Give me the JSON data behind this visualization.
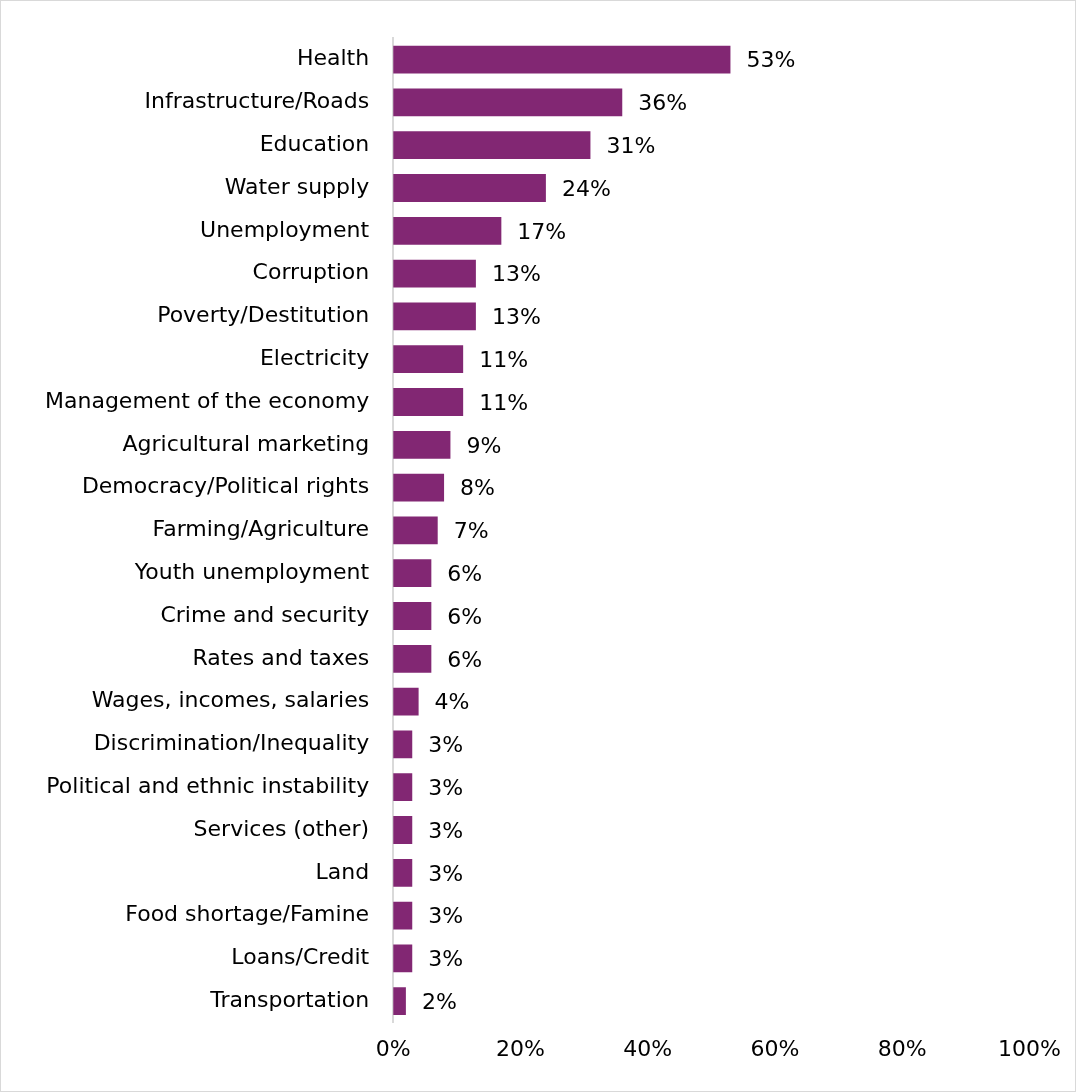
{
  "chart_data": {
    "type": "bar",
    "orientation": "horizontal",
    "categories": [
      "Health",
      "Infrastructure/Roads",
      "Education",
      "Water supply",
      "Unemployment",
      "Corruption",
      "Poverty/Destitution",
      "Electricity",
      "Management of the economy",
      "Agricultural marketing",
      "Democracy/Political rights",
      "Farming/Agriculture",
      "Youth unemployment",
      "Crime and security",
      "Rates and taxes",
      "Wages, incomes, salaries",
      "Discrimination/Inequality",
      "Political and ethnic instability",
      "Services (other)",
      "Land",
      "Food shortage/Famine",
      "Loans/Credit",
      "Transportation"
    ],
    "values": [
      53,
      36,
      31,
      24,
      17,
      13,
      13,
      11,
      11,
      9,
      8,
      7,
      6,
      6,
      6,
      4,
      3,
      3,
      3,
      3,
      3,
      3,
      2
    ],
    "value_labels": [
      "53%",
      "36%",
      "31%",
      "24%",
      "17%",
      "13%",
      "13%",
      "11%",
      "11%",
      "9%",
      "8%",
      "7%",
      "6%",
      "6%",
      "6%",
      "4%",
      "3%",
      "3%",
      "3%",
      "3%",
      "3%",
      "3%",
      "2%"
    ],
    "color": "#822773",
    "xlim": [
      0,
      100
    ],
    "xticks": [
      {
        "value": 0,
        "label": "0%"
      },
      {
        "value": 20,
        "label": "20%"
      },
      {
        "value": 40,
        "label": "40%"
      },
      {
        "value": 60,
        "label": "60%"
      },
      {
        "value": 80,
        "label": "80%"
      },
      {
        "value": 100,
        "label": "100%"
      }
    ],
    "grid": false,
    "legend": false
  }
}
